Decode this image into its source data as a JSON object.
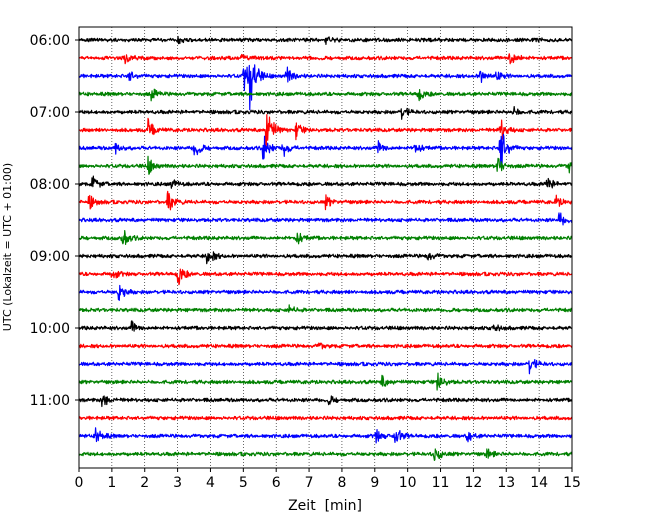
{
  "chart_data": {
    "type": "line",
    "subtype": "helicorder (seismogram drum plot)",
    "xlabel": "Zeit  [min]",
    "ylabel": "UTC (Lokalzeit = UTC + 01:00)",
    "xlim": [
      0,
      15
    ],
    "x_ticks": [
      "0",
      "1",
      "2",
      "3",
      "4",
      "5",
      "6",
      "7",
      "8",
      "9",
      "10",
      "11",
      "12",
      "13",
      "14",
      "15"
    ],
    "y_tick_labels": [
      "06:00",
      "07:00",
      "08:00",
      "09:00",
      "10:00",
      "11:00"
    ],
    "grid": "vertical dotted lines at each minute",
    "trace_interval_minutes": 15,
    "trace_colors": [
      "#000000",
      "#ff0000",
      "#0000ff",
      "#008000"
    ],
    "traces": [
      {
        "start": "06:00",
        "events": [
          {
            "minute": 3.0,
            "amp": 3
          },
          {
            "minute": 7.5,
            "amp": 3
          },
          {
            "minute": 13.8,
            "amp": 3
          }
        ]
      },
      {
        "start": "06:15",
        "events": [
          {
            "minute": 1.4,
            "amp": 7
          },
          {
            "minute": 4.9,
            "amp": 5
          },
          {
            "minute": 13.1,
            "amp": 11
          }
        ]
      },
      {
        "start": "06:30",
        "events": [
          {
            "minute": 1.5,
            "amp": 6
          },
          {
            "minute": 5.0,
            "amp": 16
          },
          {
            "minute": 5.2,
            "amp": 33
          },
          {
            "minute": 6.3,
            "amp": 10
          },
          {
            "minute": 12.2,
            "amp": 8
          },
          {
            "minute": 12.7,
            "amp": 5
          }
        ]
      },
      {
        "start": "06:45",
        "events": [
          {
            "minute": 2.2,
            "amp": 6
          },
          {
            "minute": 10.3,
            "amp": 7
          }
        ]
      },
      {
        "start": "07:00",
        "events": [
          {
            "minute": 9.8,
            "amp": 7
          },
          {
            "minute": 13.2,
            "amp": 5
          }
        ]
      },
      {
        "start": "07:15",
        "events": [
          {
            "minute": 2.1,
            "amp": 10
          },
          {
            "minute": 5.7,
            "amp": 30
          },
          {
            "minute": 6.6,
            "amp": 8
          },
          {
            "minute": 12.8,
            "amp": 14
          }
        ]
      },
      {
        "start": "07:30",
        "events": [
          {
            "minute": 1.1,
            "amp": 5
          },
          {
            "minute": 3.5,
            "amp": 10
          },
          {
            "minute": 5.6,
            "amp": 14
          },
          {
            "minute": 6.2,
            "amp": 9
          },
          {
            "minute": 9.1,
            "amp": 7
          },
          {
            "minute": 10.2,
            "amp": 7
          },
          {
            "minute": 12.8,
            "amp": 30
          }
        ]
      },
      {
        "start": "07:45",
        "events": [
          {
            "minute": 2.1,
            "amp": 8
          },
          {
            "minute": 12.7,
            "amp": 12
          },
          {
            "minute": 14.9,
            "amp": 8
          }
        ]
      },
      {
        "start": "08:00",
        "events": [
          {
            "minute": 0.4,
            "amp": 8
          },
          {
            "minute": 2.8,
            "amp": 5
          },
          {
            "minute": 14.2,
            "amp": 9
          }
        ]
      },
      {
        "start": "08:15",
        "events": [
          {
            "minute": 0.3,
            "amp": 7
          },
          {
            "minute": 2.7,
            "amp": 12
          },
          {
            "minute": 7.5,
            "amp": 6
          },
          {
            "minute": 14.5,
            "amp": 6
          }
        ]
      },
      {
        "start": "08:30",
        "events": [
          {
            "minute": 14.6,
            "amp": 8
          }
        ]
      },
      {
        "start": "08:45",
        "events": [
          {
            "minute": 1.3,
            "amp": 11
          },
          {
            "minute": 6.6,
            "amp": 8
          }
        ]
      },
      {
        "start": "09:00",
        "events": [
          {
            "minute": 3.9,
            "amp": 11
          },
          {
            "minute": 10.6,
            "amp": 5
          }
        ]
      },
      {
        "start": "09:15",
        "events": [
          {
            "minute": 1.0,
            "amp": 6
          },
          {
            "minute": 3.0,
            "amp": 12
          }
        ]
      },
      {
        "start": "09:30",
        "events": [
          {
            "minute": 1.2,
            "amp": 10
          }
        ]
      },
      {
        "start": "09:45",
        "events": [
          {
            "minute": 6.4,
            "amp": 4
          }
        ]
      },
      {
        "start": "10:00",
        "events": [
          {
            "minute": 1.6,
            "amp": 6
          },
          {
            "minute": 12.6,
            "amp": 4
          }
        ]
      },
      {
        "start": "10:15",
        "events": [
          {
            "minute": 7.3,
            "amp": 3
          }
        ]
      },
      {
        "start": "10:30",
        "events": [
          {
            "minute": 13.7,
            "amp": 9
          }
        ]
      },
      {
        "start": "10:45",
        "events": [
          {
            "minute": 9.2,
            "amp": 6
          },
          {
            "minute": 10.9,
            "amp": 10
          }
        ]
      },
      {
        "start": "11:00",
        "events": [
          {
            "minute": 0.7,
            "amp": 8
          },
          {
            "minute": 7.6,
            "amp": 4
          }
        ]
      },
      {
        "start": "11:15",
        "events": []
      },
      {
        "start": "11:30",
        "events": [
          {
            "minute": 0.5,
            "amp": 10
          },
          {
            "minute": 9.0,
            "amp": 8
          },
          {
            "minute": 9.6,
            "amp": 12
          },
          {
            "minute": 11.8,
            "amp": 6
          }
        ]
      },
      {
        "start": "11:45",
        "events": [
          {
            "minute": 10.8,
            "amp": 10
          },
          {
            "minute": 12.4,
            "amp": 5
          }
        ]
      }
    ]
  }
}
